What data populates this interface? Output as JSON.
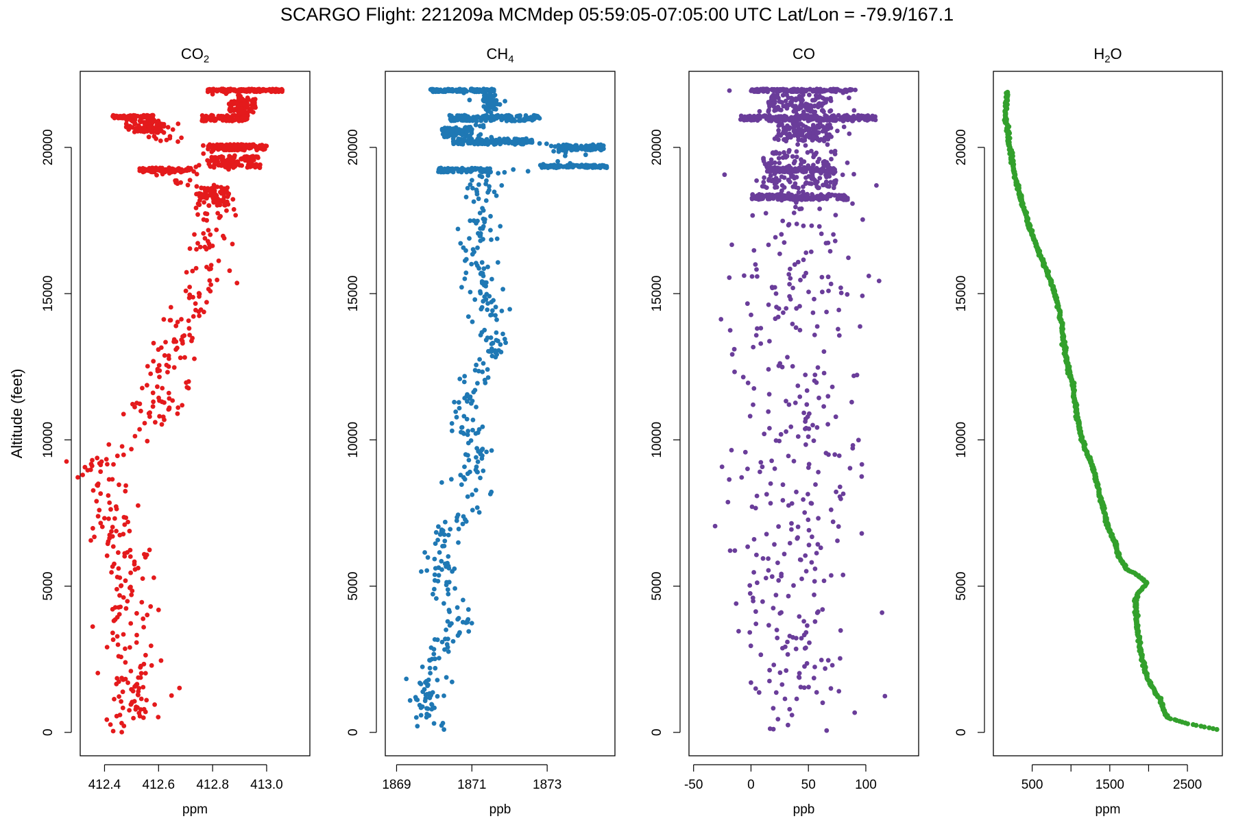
{
  "title": "SCARGO Flight: 221209a  MCMdep  05:59:05-07:05:00 UTC  Lat/Lon = -79.9/167.1",
  "chart_data": [
    {
      "type": "scatter",
      "title": "CO2",
      "title_sub": "2",
      "title_main": "CO",
      "xlabel": "ppm",
      "ylabel": "Altitude (feet)",
      "color": "#e41a1c",
      "xlim": [
        412.31,
        413.16
      ],
      "ylim": [
        -800,
        22600
      ],
      "xticks": [
        412.4,
        412.6,
        412.8,
        413.0
      ],
      "xtick_labels": [
        "412.4",
        "412.6",
        "412.8",
        "413.0"
      ],
      "yticks": [
        0,
        5000,
        10000,
        15000,
        20000
      ],
      "ytick_labels": [
        "0",
        "5000",
        "10000",
        "15000",
        "20000"
      ],
      "profile": [
        [
          0,
          412.5
        ],
        [
          500,
          412.5
        ],
        [
          1000,
          412.49
        ],
        [
          1500,
          412.5
        ],
        [
          2000,
          412.49
        ],
        [
          2500,
          412.5
        ],
        [
          3000,
          412.49
        ],
        [
          3500,
          412.48
        ],
        [
          4000,
          412.49
        ],
        [
          4500,
          412.5
        ],
        [
          5000,
          412.51
        ],
        [
          5500,
          412.5
        ],
        [
          6000,
          412.49
        ],
        [
          6500,
          412.46
        ],
        [
          7000,
          412.44
        ],
        [
          7500,
          412.45
        ],
        [
          8000,
          412.44
        ],
        [
          8500,
          412.4
        ],
        [
          9000,
          412.36
        ],
        [
          9500,
          412.41
        ],
        [
          10000,
          412.54
        ],
        [
          10500,
          412.57
        ],
        [
          11000,
          412.59
        ],
        [
          11500,
          412.62
        ],
        [
          12000,
          412.63
        ],
        [
          12500,
          412.63
        ],
        [
          13000,
          412.64
        ],
        [
          13500,
          412.65
        ],
        [
          14000,
          412.68
        ],
        [
          14500,
          412.71
        ],
        [
          15000,
          412.76
        ],
        [
          15500,
          412.79
        ],
        [
          16000,
          412.79
        ],
        [
          16500,
          412.78
        ],
        [
          17000,
          412.77
        ],
        [
          17500,
          412.77
        ],
        [
          18000,
          412.79
        ],
        [
          18500,
          412.78
        ],
        [
          19000,
          412.64
        ],
        [
          19500,
          412.8
        ],
        [
          20000,
          412.84
        ],
        [
          20500,
          412.53
        ],
        [
          21000,
          412.85
        ],
        [
          21500,
          412.9
        ],
        [
          22000,
          412.9
        ]
      ],
      "bands": [
        [
          20500,
          20950,
          412.48,
          412.62
        ],
        [
          21000,
          21100,
          412.43,
          412.58
        ],
        [
          19150,
          19300,
          412.53,
          412.72
        ],
        [
          21900,
          22000,
          412.78,
          413.06
        ],
        [
          19900,
          20100,
          412.78,
          413.0
        ],
        [
          19300,
          19700,
          412.78,
          412.98
        ],
        [
          18000,
          18700,
          412.74,
          412.86
        ],
        [
          20900,
          21100,
          412.76,
          412.93
        ],
        [
          21150,
          21700,
          412.86,
          412.96
        ]
      ],
      "spread": 0.05,
      "n_points": 420,
      "seed": 11
    },
    {
      "type": "scatter",
      "title": "CH4",
      "title_sub": "4",
      "title_main": "CH",
      "xlabel": "ppb",
      "ylabel": "",
      "color": "#1f78b4",
      "xlim": [
        1868.7,
        1874.8
      ],
      "ylim": [
        -800,
        22600
      ],
      "xticks": [
        1869,
        1871,
        1873
      ],
      "xtick_labels": [
        "1869",
        "1871",
        "1873"
      ],
      "yticks": [
        0,
        5000,
        10000,
        15000,
        20000
      ],
      "ytick_labels": [
        "0",
        "5000",
        "10000",
        "15000",
        "20000"
      ],
      "profile": [
        [
          0,
          1870.1
        ],
        [
          500,
          1869.9
        ],
        [
          1000,
          1869.8
        ],
        [
          1500,
          1869.8
        ],
        [
          2000,
          1869.9
        ],
        [
          2500,
          1870.0
        ],
        [
          3000,
          1870.4
        ],
        [
          3500,
          1870.6
        ],
        [
          4000,
          1870.7
        ],
        [
          4500,
          1870.4
        ],
        [
          5000,
          1870.3
        ],
        [
          5500,
          1870.3
        ],
        [
          6000,
          1870.2
        ],
        [
          6500,
          1870.3
        ],
        [
          7000,
          1870.4
        ],
        [
          7500,
          1870.8
        ],
        [
          8000,
          1871.1
        ],
        [
          8500,
          1871.0
        ],
        [
          9000,
          1871.0
        ],
        [
          9500,
          1871.2
        ],
        [
          10000,
          1871.1
        ],
        [
          10500,
          1870.8
        ],
        [
          11000,
          1870.7
        ],
        [
          11500,
          1870.9
        ],
        [
          12000,
          1871.1
        ],
        [
          12500,
          1871.3
        ],
        [
          13000,
          1871.6
        ],
        [
          13500,
          1871.5
        ],
        [
          14000,
          1871.5
        ],
        [
          14500,
          1871.5
        ],
        [
          15000,
          1871.3
        ],
        [
          15500,
          1871.2
        ],
        [
          16000,
          1871.2
        ],
        [
          16500,
          1871.1
        ],
        [
          17000,
          1871.1
        ],
        [
          17500,
          1871.3
        ],
        [
          18000,
          1871.3
        ],
        [
          18500,
          1871.3
        ],
        [
          19000,
          1871.2
        ],
        [
          19500,
          1873.4
        ],
        [
          20000,
          1873.6
        ],
        [
          20500,
          1870.7
        ],
        [
          21000,
          1871.4
        ],
        [
          21500,
          1871.6
        ],
        [
          22000,
          1870.9
        ]
      ],
      "bands": [
        [
          21900,
          22000,
          1869.9,
          1871.6
        ],
        [
          20900,
          21100,
          1870.4,
          1872.8
        ],
        [
          20300,
          20700,
          1870.2,
          1871.0
        ],
        [
          19150,
          19300,
          1870.1,
          1871.5
        ],
        [
          19300,
          19400,
          1872.8,
          1874.6
        ],
        [
          19900,
          20100,
          1873.4,
          1874.5
        ],
        [
          21300,
          21800,
          1871.3,
          1871.7
        ],
        [
          20100,
          20300,
          1870.5,
          1872.6
        ]
      ],
      "spread": 0.22,
      "n_points": 430,
      "seed": 23
    },
    {
      "type": "scatter",
      "title": "CO",
      "title_sub": "",
      "title_main": "CO",
      "xlabel": "ppb",
      "ylabel": "",
      "color": "#6a3d9a",
      "xlim": [
        -54,
        146
      ],
      "ylim": [
        -800,
        22600
      ],
      "xticks": [
        -50,
        0,
        50,
        100
      ],
      "xtick_labels": [
        "-50",
        "0",
        "50",
        "100"
      ],
      "yticks": [
        0,
        5000,
        10000,
        15000,
        20000
      ],
      "ytick_labels": [
        "0",
        "5000",
        "10000",
        "15000",
        "20000"
      ],
      "profile": [
        [
          0,
          35
        ],
        [
          2000,
          35
        ],
        [
          4000,
          32
        ],
        [
          6000,
          34
        ],
        [
          8000,
          38
        ],
        [
          10000,
          40
        ],
        [
          12000,
          36
        ],
        [
          14000,
          33
        ],
        [
          16000,
          38
        ],
        [
          18000,
          40
        ],
        [
          20000,
          45
        ],
        [
          22000,
          45
        ]
      ],
      "bands": [
        [
          21900,
          22000,
          0,
          90
        ],
        [
          20900,
          21100,
          -10,
          110
        ],
        [
          18200,
          18400,
          0,
          85
        ],
        [
          19150,
          19300,
          15,
          75
        ],
        [
          20200,
          20800,
          20,
          70
        ],
        [
          18600,
          19900,
          10,
          75
        ],
        [
          21200,
          21800,
          15,
          70
        ]
      ],
      "spread": 27,
      "n_points": 430,
      "seed": 37
    },
    {
      "type": "line",
      "title": "H2O",
      "title_sub": "2",
      "title_main": "H",
      "title_after": "O",
      "xlabel": "ppm",
      "ylabel": "",
      "color": "#33a02c",
      "xlim": [
        0,
        2950
      ],
      "ylim": [
        -800,
        22600
      ],
      "xticks": [
        500,
        1000,
        1500,
        2000,
        2500
      ],
      "xtick_labels": [
        "500",
        "",
        "1500",
        "",
        "2500"
      ],
      "yticks": [
        0,
        5000,
        10000,
        15000,
        20000
      ],
      "ytick_labels": [
        "0",
        "5000",
        "10000",
        "15000",
        "20000"
      ],
      "profile": [
        [
          100,
          2880
        ],
        [
          150,
          2800
        ],
        [
          300,
          2500
        ],
        [
          500,
          2250
        ],
        [
          700,
          2200
        ],
        [
          1000,
          2170
        ],
        [
          1500,
          2060
        ],
        [
          2000,
          1960
        ],
        [
          3000,
          1880
        ],
        [
          4000,
          1840
        ],
        [
          4500,
          1830
        ],
        [
          4800,
          1870
        ],
        [
          5100,
          1990
        ],
        [
          5400,
          1850
        ],
        [
          5600,
          1700
        ],
        [
          6000,
          1620
        ],
        [
          6500,
          1570
        ],
        [
          7000,
          1480
        ],
        [
          8000,
          1380
        ],
        [
          9000,
          1290
        ],
        [
          10000,
          1140
        ],
        [
          11000,
          1070
        ],
        [
          12000,
          1010
        ],
        [
          13000,
          920
        ],
        [
          14000,
          880
        ],
        [
          15000,
          800
        ],
        [
          16000,
          650
        ],
        [
          17000,
          500
        ],
        [
          18000,
          380
        ],
        [
          19000,
          280
        ],
        [
          20000,
          210
        ],
        [
          20800,
          170
        ],
        [
          21000,
          150
        ],
        [
          21500,
          170
        ],
        [
          21900,
          180
        ]
      ]
    }
  ]
}
